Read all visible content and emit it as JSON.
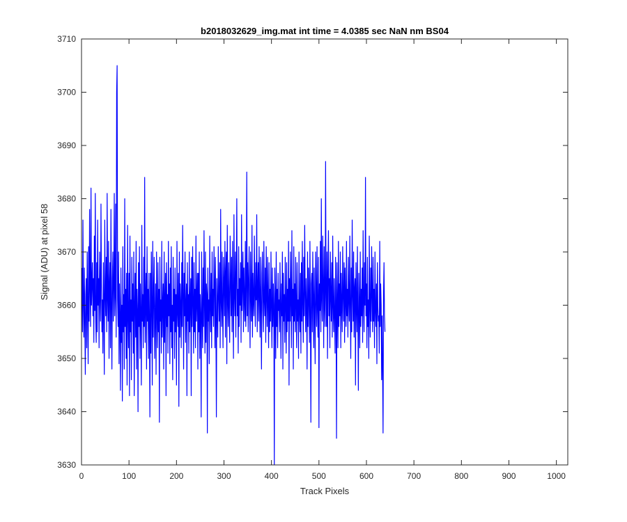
{
  "chart_data": {
    "type": "line",
    "title": "b2018032629_img.mat int time = 4.0385 sec  NaN nm BS04",
    "xlabel": "Track Pixels",
    "ylabel": "Signal (ADU) at pixel 58",
    "xlim": [
      0,
      1024
    ],
    "ylim": [
      3630,
      3710
    ],
    "xticks": [
      0,
      100,
      200,
      300,
      400,
      500,
      600,
      700,
      800,
      900,
      1000
    ],
    "yticks": [
      3630,
      3640,
      3650,
      3660,
      3670,
      3680,
      3690,
      3700,
      3710
    ],
    "grid": false,
    "series": [
      {
        "color": "#0000ff",
        "x_start": 1,
        "x_step": 1,
        "values": [
          3667,
          3655,
          3676,
          3660,
          3654,
          3667,
          3657,
          3647,
          3662,
          3665,
          3652,
          3670,
          3660,
          3649,
          3671,
          3657,
          3678,
          3663,
          3656,
          3682,
          3660,
          3664,
          3668,
          3658,
          3665,
          3653,
          3673,
          3659,
          3681,
          3657,
          3653,
          3668,
          3655,
          3676,
          3660,
          3665,
          3652,
          3670,
          3662,
          3657,
          3679,
          3664,
          3655,
          3661,
          3651,
          3668,
          3660,
          3647,
          3676,
          3662,
          3658,
          3669,
          3655,
          3681,
          3661,
          3657,
          3672,
          3650,
          3664,
          3668,
          3652,
          3678,
          3660,
          3648,
          3665,
          3670,
          3657,
          3663,
          3681,
          3658,
          3662,
          3679,
          3654,
          3700,
          3705,
          3661,
          3656,
          3670,
          3649,
          3664,
          3658,
          3644,
          3667,
          3653,
          3660,
          3642,
          3671,
          3655,
          3662,
          3648,
          3680,
          3656,
          3663,
          3650,
          3666,
          3645,
          3675,
          3658,
          3652,
          3666,
          3643,
          3673,
          3655,
          3661,
          3646,
          3669,
          3657,
          3664,
          3651,
          3670,
          3643,
          3660,
          3666,
          3654,
          3672,
          3648,
          3663,
          3659,
          3640,
          3668,
          3656,
          3671,
          3650,
          3664,
          3658,
          3645,
          3675,
          3657,
          3662,
          3652,
          3669,
          3656,
          3684,
          3653,
          3661,
          3666,
          3648,
          3671,
          3657,
          3663,
          3650,
          3666,
          3658,
          3639,
          3666,
          3651,
          3670,
          3660,
          3645,
          3672,
          3654,
          3662,
          3669,
          3650,
          3658,
          3664,
          3647,
          3670,
          3659,
          3652,
          3668,
          3655,
          3663,
          3638,
          3669,
          3657,
          3661,
          3651,
          3672,
          3654,
          3660,
          3664,
          3648,
          3670,
          3653,
          3661,
          3666,
          3643,
          3668,
          3656,
          3662,
          3651,
          3672,
          3658,
          3664,
          3649,
          3667,
          3655,
          3671,
          3652,
          3660,
          3646,
          3669,
          3657,
          3663,
          3650,
          3667,
          3655,
          3662,
          3645,
          3672,
          3659,
          3656,
          3666,
          3641,
          3670,
          3654,
          3664,
          3660,
          3652,
          3668,
          3656,
          3675,
          3662,
          3648,
          3666,
          3658,
          3670,
          3653,
          3660,
          3664,
          3643,
          3668,
          3657,
          3662,
          3651,
          3670,
          3655,
          3661,
          3665,
          3643,
          3669,
          3656,
          3671,
          3660,
          3651,
          3668,
          3655,
          3663,
          3652,
          3673,
          3657,
          3661,
          3666,
          3648,
          3666,
          3655,
          3670,
          3650,
          3662,
          3658,
          3639,
          3670,
          3659,
          3652,
          3667,
          3656,
          3674,
          3660,
          3651,
          3670,
          3653,
          3664,
          3662,
          3636,
          3667,
          3657,
          3661,
          3649,
          3673,
          3660,
          3655,
          3666,
          3652,
          3670,
          3658,
          3663,
          3656,
          3671,
          3664,
          3652,
          3669,
          3657,
          3639,
          3665,
          3660,
          3654,
          3671,
          3662,
          3657,
          3668,
          3652,
          3678,
          3661,
          3656,
          3670,
          3660,
          3652,
          3669,
          3664,
          3658,
          3672,
          3654,
          3666,
          3670,
          3649,
          3675,
          3661,
          3656,
          3668,
          3660,
          3653,
          3673,
          3665,
          3658,
          3669,
          3655,
          3672,
          3661,
          3650,
          3677,
          3662,
          3658,
          3670,
          3654,
          3666,
          3680,
          3658,
          3663,
          3651,
          3671,
          3656,
          3665,
          3660,
          3668,
          3653,
          3677,
          3659,
          3664,
          3670,
          3655,
          3667,
          3661,
          3657,
          3672,
          3656,
          3663,
          3685,
          3658,
          3668,
          3655,
          3665,
          3671,
          3660,
          3652,
          3670,
          3662,
          3657,
          3675,
          3654,
          3666,
          3661,
          3658,
          3673,
          3662,
          3656,
          3668,
          3661,
          3677,
          3655,
          3663,
          3668,
          3657,
          3671,
          3661,
          3654,
          3669,
          3660,
          3648,
          3666,
          3670,
          3659,
          3655,
          3672,
          3661,
          3658,
          3667,
          3653,
          3671,
          3662,
          3656,
          3669,
          3660,
          3652,
          3668,
          3655,
          3663,
          3657,
          3670,
          3659,
          3652,
          3667,
          3656,
          3664,
          3660,
          3628,
          3667,
          3661,
          3650,
          3670,
          3656,
          3663,
          3652,
          3666,
          3659,
          3661,
          3655,
          3668,
          3660,
          3650,
          3664,
          3658,
          3670,
          3648,
          3666,
          3657,
          3662,
          3653,
          3669,
          3660,
          3651,
          3668,
          3655,
          3663,
          3657,
          3672,
          3645,
          3665,
          3657,
          3670,
          3660,
          3652,
          3674,
          3658,
          3663,
          3648,
          3671,
          3657,
          3664,
          3655,
          3669,
          3660,
          3652,
          3668,
          3657,
          3661,
          3650,
          3670,
          3659,
          3655,
          3666,
          3651,
          3668,
          3657,
          3672,
          3660,
          3653,
          3669,
          3658,
          3675,
          3662,
          3655,
          3665,
          3660,
          3648,
          3670,
          3656,
          3667,
          3661,
          3653,
          3672,
          3659,
          3638,
          3664,
          3666,
          3655,
          3670,
          3661,
          3652,
          3667,
          3658,
          3649,
          3670,
          3662,
          3656,
          3671,
          3659,
          3654,
          3669,
          3637,
          3664,
          3659,
          3672,
          3655,
          3680,
          3661,
          3657,
          3673,
          3664,
          3652,
          3671,
          3660,
          3656,
          3687,
          3662,
          3656,
          3670,
          3650,
          3666,
          3674,
          3658,
          3665,
          3652,
          3670,
          3662,
          3657,
          3668,
          3654,
          3673,
          3660,
          3655,
          3665,
          3658,
          3651,
          3669,
          3661,
          3635,
          3668,
          3660,
          3652,
          3672,
          3656,
          3664,
          3658,
          3670,
          3652,
          3666,
          3660,
          3655,
          3671,
          3662,
          3657,
          3668,
          3653,
          3667,
          3661,
          3656,
          3672,
          3658,
          3663,
          3654,
          3669,
          3661,
          3657,
          3673,
          3660,
          3650,
          3667,
          3655,
          3676,
          3662,
          3657,
          3670,
          3654,
          3663,
          3665,
          3645,
          3668,
          3660,
          3655,
          3671,
          3658,
          3644,
          3666,
          3660,
          3652,
          3670,
          3656,
          3663,
          3658,
          3667,
          3653,
          3674,
          3661,
          3655,
          3668,
          3660,
          3684,
          3658,
          3664,
          3652,
          3669,
          3656,
          3661,
          3650,
          3673,
          3660,
          3654,
          3667,
          3657,
          3671,
          3662,
          3655,
          3669,
          3657,
          3663,
          3652,
          3670,
          3659,
          3656,
          3664,
          3649,
          3668,
          3660,
          3657,
          3658,
          3651,
          3672,
          3656,
          3664,
          3660,
          3646,
          3658,
          3648,
          3636,
          3662,
          3668,
          3658,
          3655
        ]
      }
    ]
  }
}
